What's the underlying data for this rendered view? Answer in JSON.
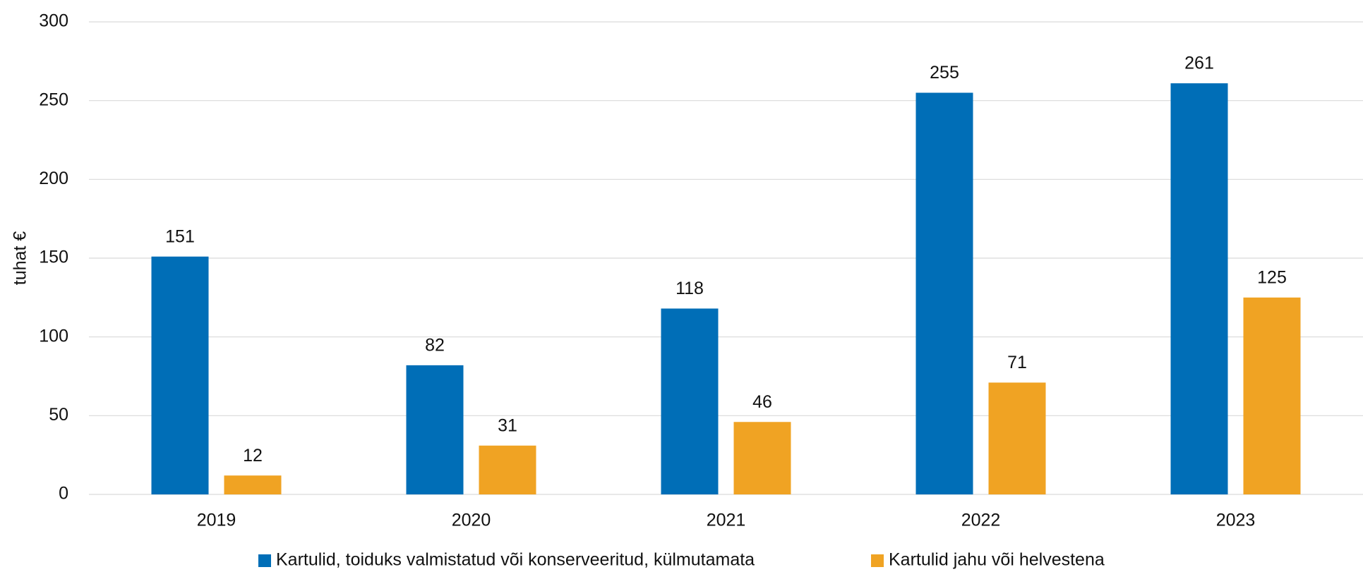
{
  "chart_data": {
    "type": "bar",
    "y_label": "tuhat €",
    "categories": [
      "2019",
      "2020",
      "2021",
      "2022",
      "2023"
    ],
    "series": [
      {
        "name": "Kartulid, toiduks valmistatud või konserveeritud, külmutamata",
        "color": "#006eb7",
        "values": [
          151,
          82,
          118,
          255,
          261
        ]
      },
      {
        "name": "Kartulid jahu või helvestena",
        "color": "#f0a323",
        "values": [
          12,
          31,
          46,
          71,
          125
        ]
      }
    ],
    "ylim": [
      0,
      300
    ],
    "yticks": [
      0,
      50,
      100,
      150,
      200,
      250,
      300
    ],
    "grid": true,
    "legend": "bottom"
  }
}
